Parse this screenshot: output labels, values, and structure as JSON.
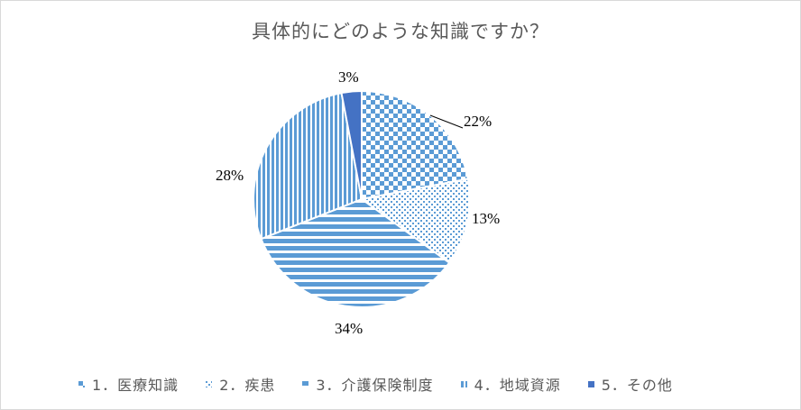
{
  "chart_data": {
    "type": "pie",
    "title": "具体的にどのような知識ですか？",
    "categories": [
      "1．医療知識",
      "2．疾患",
      "3．介護保険制度",
      "4．地域資源",
      "5．その他"
    ],
    "values": [
      22,
      13,
      34,
      28,
      3
    ],
    "value_labels": [
      "22%",
      "13%",
      "34%",
      "28%",
      "3%"
    ],
    "legend_position": "bottom",
    "colors": [
      "#5B9BD5",
      "#5B9BD5",
      "#5B9BD5",
      "#5B9BD5",
      "#4472C4"
    ],
    "patterns": [
      "checker",
      "dots",
      "horizontal",
      "vertical",
      "solid"
    ]
  }
}
